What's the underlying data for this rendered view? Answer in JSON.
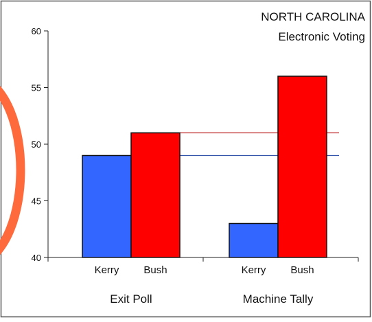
{
  "chart_data": {
    "type": "bar",
    "title": [
      "NORTH CAROLINA",
      "Electronic Voting"
    ],
    "xlabel": "",
    "ylabel": "",
    "ylim": [
      40,
      60
    ],
    "yticks": [
      40,
      45,
      50,
      55,
      60
    ],
    "groups": [
      {
        "label": "Exit Poll",
        "bars": [
          {
            "category": "Kerry",
            "value": 49,
            "color": "#3366ff"
          },
          {
            "category": "Bush",
            "value": 51,
            "color": "#ff0000"
          }
        ]
      },
      {
        "label": "Machine Tally",
        "bars": [
          {
            "category": "Kerry",
            "value": 43,
            "color": "#3366ff"
          },
          {
            "category": "Bush",
            "value": 56,
            "color": "#ff0000"
          }
        ]
      }
    ],
    "reference_lines": [
      {
        "value": 51,
        "color": "#c03030"
      },
      {
        "value": 49,
        "color": "#3355aa"
      }
    ],
    "grid": false,
    "legend": "none",
    "annotation": {
      "shape": "partial-circle",
      "color": "#ff6a3d"
    }
  }
}
